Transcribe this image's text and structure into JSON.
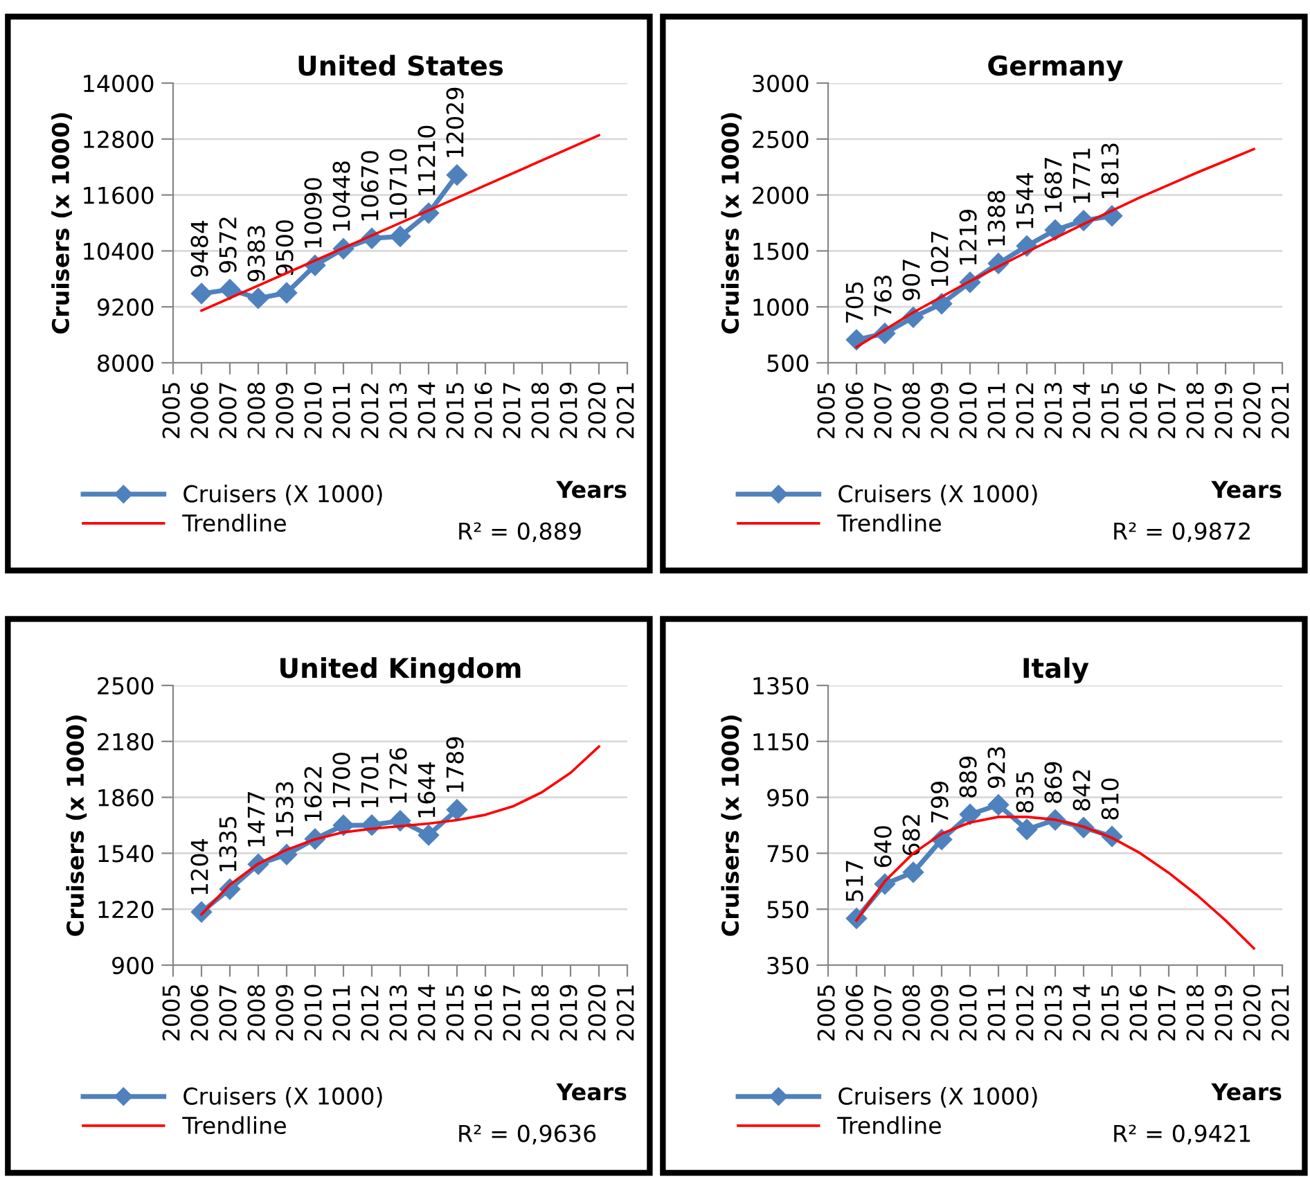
{
  "chart_data": [
    {
      "type": "line",
      "title": "United States",
      "xlabel": "Years",
      "ylabel": "Cruisers (x 1000)",
      "xlim": [
        2005,
        2021
      ],
      "xticks": [
        2005,
        2006,
        2007,
        2008,
        2009,
        2010,
        2011,
        2012,
        2013,
        2014,
        2015,
        2016,
        2017,
        2018,
        2019,
        2020,
        2021
      ],
      "ylim": [
        8000,
        14000
      ],
      "yticks": [
        8000,
        9200,
        10400,
        11600,
        12800,
        14000
      ],
      "grid": "y",
      "legend": "bottom",
      "annotations": [
        "R² = 0,889"
      ],
      "series": [
        {
          "name": "Cruisers (X 1000)",
          "color": "#4f81bd",
          "marker": "diamond",
          "data_labels": true,
          "x": [
            2006,
            2007,
            2008,
            2009,
            2010,
            2011,
            2012,
            2013,
            2014,
            2015
          ],
          "values": [
            9484,
            9572,
            9383,
            9500,
            10090,
            10448,
            10670,
            10710,
            11210,
            12029
          ]
        },
        {
          "name": "Trendline",
          "color": "#ff0000",
          "marker": "none",
          "x": [
            2006,
            2020
          ],
          "values": [
            9120,
            12880
          ]
        }
      ]
    },
    {
      "type": "line",
      "title": "Germany",
      "xlabel": "Years",
      "ylabel": "Cruisers (x 1000)",
      "xlim": [
        2005,
        2021
      ],
      "xticks": [
        2005,
        2006,
        2007,
        2008,
        2009,
        2010,
        2011,
        2012,
        2013,
        2014,
        2015,
        2016,
        2017,
        2018,
        2019,
        2020,
        2021
      ],
      "ylim": [
        500,
        3000
      ],
      "yticks": [
        500,
        1000,
        1500,
        2000,
        2500,
        3000
      ],
      "grid": "y",
      "legend": "bottom",
      "annotations": [
        "R² = 0,9872"
      ],
      "series": [
        {
          "name": "Cruisers (X 1000)",
          "color": "#4f81bd",
          "marker": "diamond",
          "data_labels": true,
          "x": [
            2006,
            2007,
            2008,
            2009,
            2010,
            2011,
            2012,
            2013,
            2014,
            2015
          ],
          "values": [
            705,
            763,
            907,
            1027,
            1219,
            1388,
            1544,
            1687,
            1771,
            1813
          ]
        },
        {
          "name": "Trendline",
          "color": "#ff0000",
          "marker": "none",
          "x": [
            2006,
            2008,
            2010,
            2012,
            2014,
            2016,
            2018,
            2020
          ],
          "values": [
            640,
            950,
            1230,
            1490,
            1740,
            1980,
            2200,
            2410
          ]
        }
      ]
    },
    {
      "type": "line",
      "title": "United Kingdom",
      "xlabel": "Years",
      "ylabel": "Cruisers (x 1000)",
      "xlim": [
        2005,
        2021
      ],
      "xticks": [
        2005,
        2006,
        2007,
        2008,
        2009,
        2010,
        2011,
        2012,
        2013,
        2014,
        2015,
        2016,
        2017,
        2018,
        2019,
        2020,
        2021
      ],
      "ylim": [
        900,
        2500
      ],
      "yticks": [
        900,
        1220,
        1540,
        1860,
        2180,
        2500
      ],
      "grid": "y",
      "legend": "bottom",
      "annotations": [
        "R² = 0,9636"
      ],
      "series": [
        {
          "name": "Cruisers (X 1000)",
          "color": "#4f81bd",
          "marker": "diamond",
          "data_labels": true,
          "x": [
            2006,
            2007,
            2008,
            2009,
            2010,
            2011,
            2012,
            2013,
            2014,
            2015
          ],
          "values": [
            1204,
            1335,
            1477,
            1533,
            1622,
            1700,
            1701,
            1726,
            1644,
            1789
          ]
        },
        {
          "name": "Trendline",
          "color": "#ff0000",
          "marker": "none",
          "x": [
            2006,
            2007,
            2008,
            2009,
            2010,
            2011,
            2012,
            2013,
            2014,
            2015,
            2016,
            2017,
            2018,
            2019,
            2020
          ],
          "values": [
            1190,
            1360,
            1480,
            1560,
            1620,
            1660,
            1680,
            1695,
            1710,
            1730,
            1760,
            1810,
            1890,
            2000,
            2150
          ]
        }
      ]
    },
    {
      "type": "line",
      "title": "Italy",
      "xlabel": "Years",
      "ylabel": "Cruisers (x 1000)",
      "xlim": [
        2005,
        2021
      ],
      "xticks": [
        2005,
        2006,
        2007,
        2008,
        2009,
        2010,
        2011,
        2012,
        2013,
        2014,
        2015,
        2016,
        2017,
        2018,
        2019,
        2020,
        2021
      ],
      "ylim": [
        350,
        1350
      ],
      "yticks": [
        350,
        550,
        750,
        950,
        1150,
        1350
      ],
      "grid": "y",
      "legend": "bottom",
      "annotations": [
        "R² = 0,9421"
      ],
      "series": [
        {
          "name": "Cruisers (X 1000)",
          "color": "#4f81bd",
          "marker": "diamond",
          "data_labels": true,
          "x": [
            2006,
            2007,
            2008,
            2009,
            2010,
            2011,
            2012,
            2013,
            2014,
            2015
          ],
          "values": [
            517,
            640,
            682,
            799,
            889,
            923,
            835,
            869,
            842,
            810
          ]
        },
        {
          "name": "Trendline",
          "color": "#ff0000",
          "marker": "none",
          "x": [
            2006,
            2007,
            2008,
            2009,
            2010,
            2011,
            2012,
            2013,
            2014,
            2015,
            2016,
            2017,
            2018,
            2019,
            2020
          ],
          "values": [
            510,
            650,
            750,
            820,
            860,
            880,
            880,
            870,
            845,
            805,
            750,
            680,
            600,
            510,
            410
          ]
        }
      ]
    }
  ]
}
